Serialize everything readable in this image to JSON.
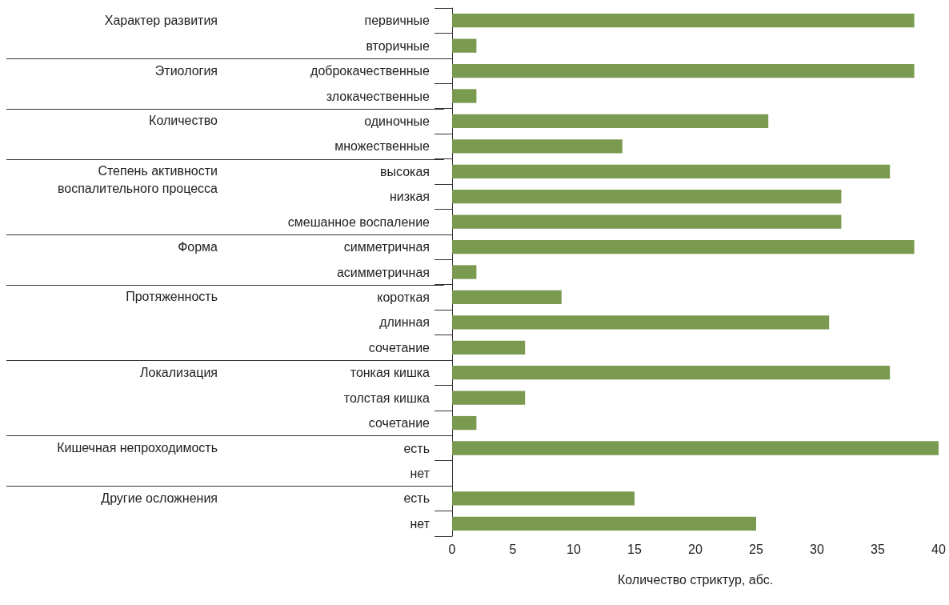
{
  "chart_data": {
    "type": "bar",
    "orientation": "horizontal",
    "xlabel": "Количество стриктур, абс.",
    "categories": [
      "первичные",
      "вторичные",
      "доброкачественные",
      "злокачественные",
      "одиночные",
      "множественные",
      "высокая",
      "низкая",
      "смешанное воспаление",
      "симметричная",
      "асимметричная",
      "короткая",
      "длинная",
      "сочетание",
      "тонкая кишка",
      "толстая кишка",
      "сочетание",
      "есть",
      "нет",
      "есть",
      "нет"
    ],
    "values": [
      38,
      2,
      38,
      2,
      26,
      14,
      36,
      32,
      32,
      38,
      2,
      9,
      31,
      6,
      36,
      6,
      2,
      40,
      0,
      15,
      25
    ],
    "color": "#7a9a50",
    "xlim": [
      0,
      40
    ],
    "xticks": [
      0,
      5,
      10,
      15,
      20,
      25,
      30,
      35,
      40
    ],
    "grid": false,
    "annotations": [
      "Характер развития",
      "Этиология",
      "Количество",
      "Степень активности воспалительного процесса",
      "Форма",
      "Протяженность",
      "Локализация",
      "Кишечная непроходимость",
      "Другие осложнения"
    ]
  }
}
